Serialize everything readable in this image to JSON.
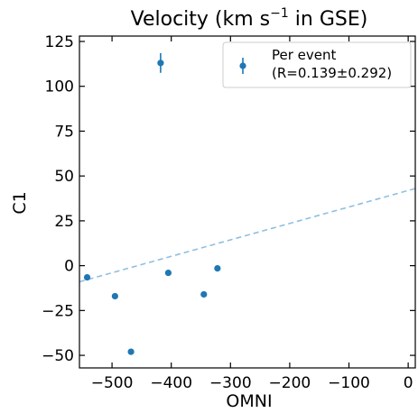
{
  "chart_data": {
    "type": "scatter",
    "title": "Velocity (km s",
    "title_superscript": "−1",
    "title_suffix": " in GSE)",
    "xlabel": "OMNI",
    "ylabel": "C1",
    "xlim": [
      -555,
      12
    ],
    "ylim": [
      -57,
      128
    ],
    "xticks": [
      -500,
      -400,
      -300,
      -200,
      -100,
      0
    ],
    "xtick_labels": [
      "−500",
      "−400",
      "−300",
      "−200",
      "−100",
      "0"
    ],
    "yticks": [
      -50,
      -25,
      0,
      25,
      50,
      75,
      100,
      125
    ],
    "ytick_labels": [
      "−50",
      "−25",
      "0",
      "25",
      "50",
      "75",
      "100",
      "125"
    ],
    "grid": false,
    "legend_position": "top-right",
    "colors": {
      "marker": "#1f77b4",
      "fit_line": "#8fbfe0"
    },
    "series": [
      {
        "name": "Per event",
        "name_line2": "(R=0.139±0.292)",
        "points": [
          {
            "x": -542,
            "y": -6.5
          },
          {
            "x": -495,
            "y": -17
          },
          {
            "x": -468,
            "y": -48
          },
          {
            "x": -418,
            "y": 113,
            "yerr": 5.5
          },
          {
            "x": -405,
            "y": -4
          },
          {
            "x": -345,
            "y": -16
          },
          {
            "x": -322,
            "y": -1.5
          }
        ]
      }
    ],
    "fit_line": {
      "x": [
        -555,
        12
      ],
      "y": [
        -9,
        43
      ]
    }
  }
}
